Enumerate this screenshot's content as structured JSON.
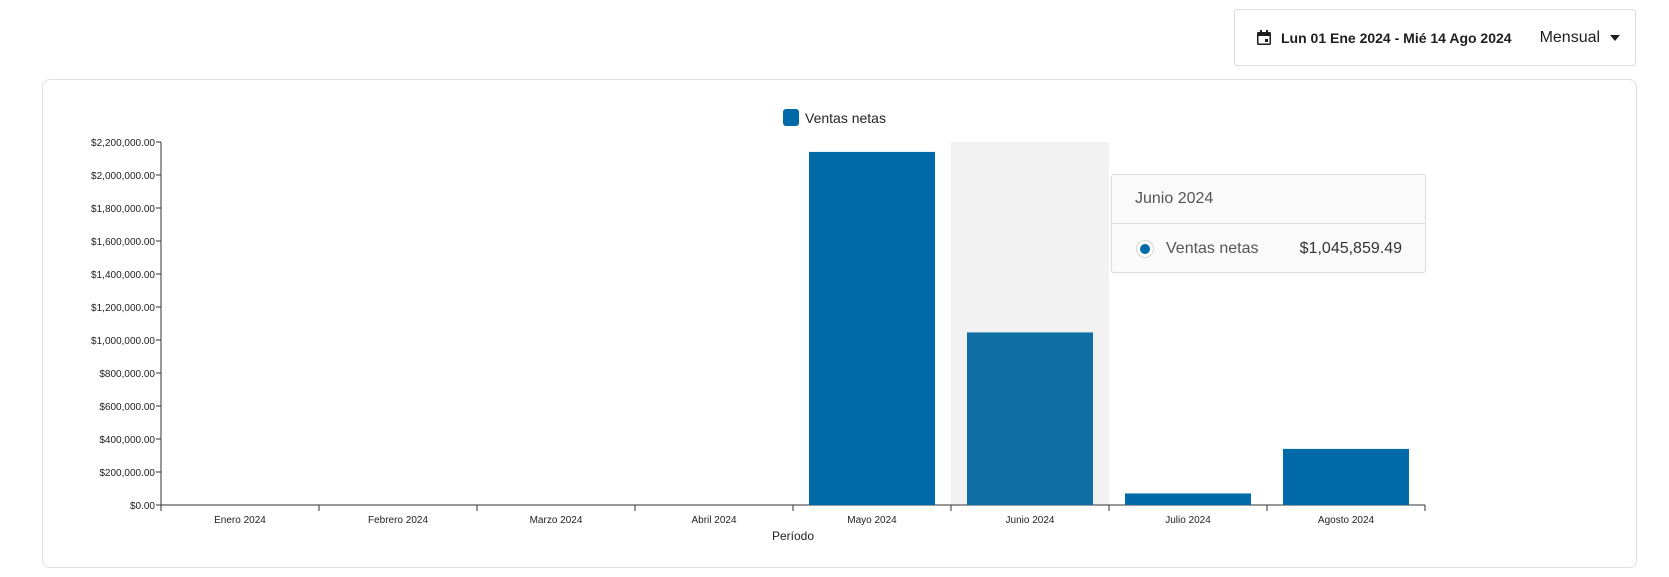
{
  "controls": {
    "date_range": "Lun 01 Ene 2024 - Mié 14 Ago 2024",
    "period": "Mensual",
    "calendar_icon": "calendar-icon",
    "dropdown_icon": "caret-down-icon"
  },
  "tooltip": {
    "title": "Junio 2024",
    "series_name": "Ventas netas",
    "value": "$1,045,859.49"
  },
  "chart_data": {
    "type": "bar",
    "legend": {
      "label": "Ventas netas",
      "position": "top-center"
    },
    "xlabel": "Período",
    "ylabel": "",
    "categories": [
      "Enero 2024",
      "Febrero 2024",
      "Marzo 2024",
      "Abril 2024",
      "Mayo 2024",
      "Junio 2024",
      "Julio 2024",
      "Agosto 2024"
    ],
    "series": [
      {
        "name": "Ventas netas",
        "color": "#0069a8",
        "values": [
          0,
          0,
          0,
          0,
          2140000,
          1045859.49,
          70000,
          340000
        ]
      }
    ],
    "ylim": [
      0,
      2200000
    ],
    "yticks": [
      0,
      200000,
      400000,
      600000,
      800000,
      1000000,
      1200000,
      1400000,
      1600000,
      1800000,
      2000000,
      2200000
    ],
    "ytick_labels": [
      "$0.00",
      "$200,000.00",
      "$400,000.00",
      "$600,000.00",
      "$800,000.00",
      "$1,000,000.00",
      "$1,200,000.00",
      "$1,400,000.00",
      "$1,600,000.00",
      "$1,800,000.00",
      "$2,000,000.00",
      "$2,200,000.00"
    ],
    "highlighted_category": "Junio 2024",
    "highlight_color": "#f2f2f2",
    "hover_bar_color": "#0e6ea6",
    "grid": false
  }
}
